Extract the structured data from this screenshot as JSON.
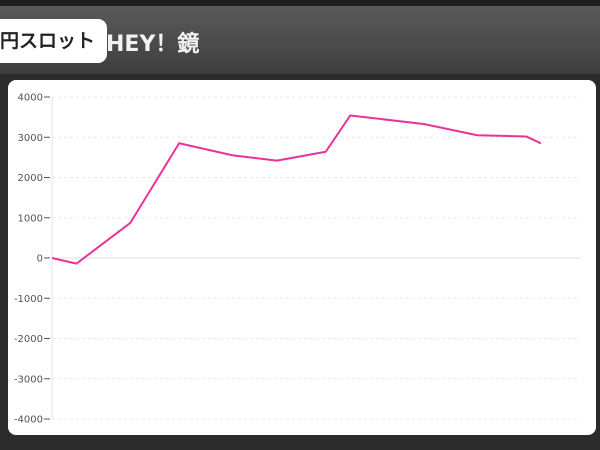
{
  "header": {
    "category": "円スロット",
    "title": "HEY！鏡"
  },
  "chart_data": {
    "type": "line",
    "title": "",
    "xlabel": "",
    "ylabel": "",
    "ylim": [
      -4000,
      4000
    ],
    "xlim": [
      0,
      108
    ],
    "yticks": [
      "4000",
      "3000",
      "2000",
      "1000",
      "0",
      "-1000",
      "-2000",
      "-3000",
      "-4000"
    ],
    "grid": true,
    "line_color": "#e8339a",
    "x": [
      0,
      5,
      16,
      26,
      37,
      46,
      56,
      61,
      76,
      87,
      97,
      100
    ],
    "values": [
      0,
      -140,
      870,
      2850,
      2550,
      2420,
      2640,
      3540,
      3330,
      3050,
      3020,
      2850
    ]
  }
}
